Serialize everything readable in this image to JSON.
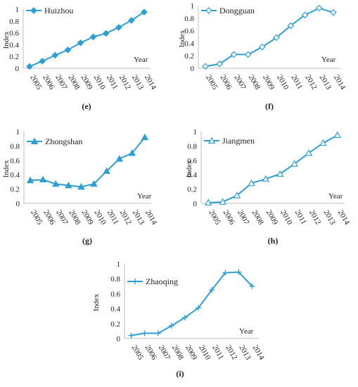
{
  "colors": {
    "series": "#2e9fd6",
    "axis": "#bdbdbd",
    "text": "#222222"
  },
  "chart_data": [
    {
      "type": "line",
      "panel": "e",
      "caption": "(e)",
      "ylabel": "Index",
      "xlabel": "Year",
      "x": [
        "2005",
        "2006",
        "2007",
        "2008",
        "2009",
        "2010",
        "2011",
        "2012",
        "2013",
        "2014"
      ],
      "yticks": [
        "0",
        "0.2",
        "0.4",
        "0.6",
        "0.8",
        "1"
      ],
      "ylim": [
        0,
        1
      ],
      "series": [
        {
          "name": "Huizhou",
          "marker": "diamond-filled",
          "values": [
            0.03,
            0.12,
            0.22,
            0.31,
            0.43,
            0.53,
            0.59,
            0.69,
            0.81,
            0.95
          ]
        }
      ]
    },
    {
      "type": "line",
      "panel": "f",
      "caption": "(f)",
      "ylabel": "Index",
      "xlabel": "Year",
      "x": [
        "2005",
        "2006",
        "2007",
        "2008",
        "2009",
        "2010",
        "2011",
        "2012",
        "2013",
        "2014"
      ],
      "yticks": [
        "0",
        "0.2",
        "0.4",
        "0.6",
        "0.8",
        "1"
      ],
      "ylim": [
        0,
        1
      ],
      "series": [
        {
          "name": "Dongguan",
          "marker": "diamond-open",
          "values": [
            0.03,
            0.07,
            0.22,
            0.22,
            0.34,
            0.49,
            0.68,
            0.85,
            0.96,
            0.89
          ]
        }
      ]
    },
    {
      "type": "line",
      "panel": "g",
      "caption": "(g)",
      "ylabel": "Index",
      "xlabel": "Year",
      "x": [
        "2005",
        "2006",
        "2007",
        "2008",
        "2009",
        "2010",
        "2011",
        "2012",
        "2013",
        "2014"
      ],
      "yticks": [
        "0",
        "0.2",
        "0.4",
        "0.6",
        "0.8",
        "1"
      ],
      "ylim": [
        0,
        1
      ],
      "series": [
        {
          "name": "Zhongshan",
          "marker": "triangle-filled",
          "values": [
            0.32,
            0.33,
            0.27,
            0.25,
            0.23,
            0.27,
            0.45,
            0.62,
            0.7,
            0.92
          ]
        }
      ]
    },
    {
      "type": "line",
      "panel": "h",
      "caption": "(h)",
      "ylabel": "Index",
      "xlabel": "Year",
      "x": [
        "2005",
        "2006",
        "2007",
        "2008",
        "2009",
        "2010",
        "2011",
        "2012",
        "2013",
        "2014"
      ],
      "yticks": [
        "0",
        "0.2",
        "0.4",
        "0.6",
        "0.8",
        "1"
      ],
      "ylim": [
        0,
        1
      ],
      "series": [
        {
          "name": "Jiangmen",
          "marker": "triangle-open",
          "values": [
            0.01,
            0.02,
            0.11,
            0.28,
            0.34,
            0.41,
            0.55,
            0.7,
            0.84,
            0.95
          ]
        }
      ]
    },
    {
      "type": "line",
      "panel": "i",
      "caption": "(i)",
      "ylabel": "Index",
      "xlabel": "Year",
      "x": [
        "2005",
        "2006",
        "2007",
        "2008",
        "2009",
        "2010",
        "2011",
        "2012",
        "2013",
        "2014"
      ],
      "yticks": [
        "0",
        "0.2",
        "0.4",
        "0.6",
        "0.8",
        "1"
      ],
      "ylim": [
        0,
        1
      ],
      "series": [
        {
          "name": "Zhaoqing",
          "marker": "plus",
          "values": [
            0.04,
            0.07,
            0.07,
            0.17,
            0.28,
            0.41,
            0.65,
            0.88,
            0.89,
            0.7
          ]
        }
      ]
    }
  ]
}
